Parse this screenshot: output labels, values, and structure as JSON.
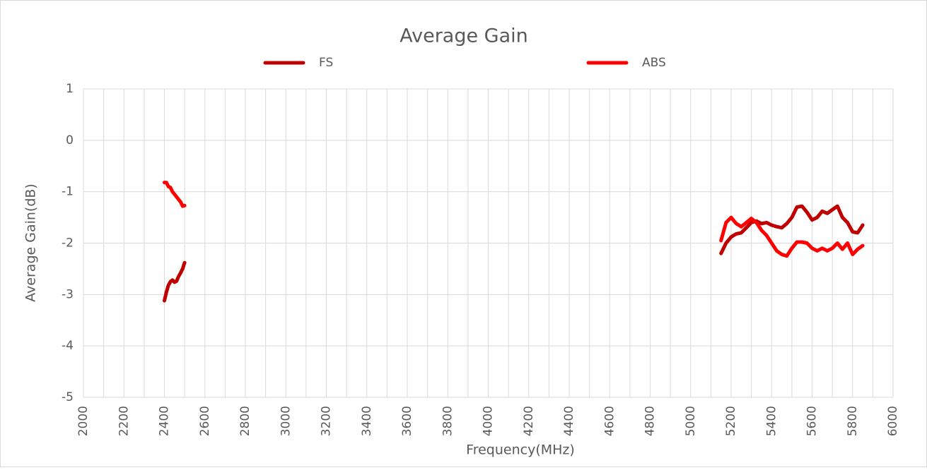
{
  "chart_data": {
    "type": "line",
    "title": "Average Gain",
    "x_label": "Frequency(MHz)",
    "y_label": "Average Gain(dB)",
    "legend": "top",
    "grid": true,
    "xlim": [
      2000,
      6000
    ],
    "xticks": [
      2000,
      2200,
      2400,
      2600,
      2800,
      3000,
      3200,
      3400,
      3600,
      3800,
      4000,
      4200,
      4400,
      4600,
      4800,
      5000,
      5200,
      5400,
      5600,
      5800,
      6000
    ],
    "xminorticks": [
      2100,
      2300,
      2500,
      2700,
      2900,
      3100,
      3300,
      3500,
      3700,
      3900,
      4100,
      4300,
      4500,
      4700,
      4900,
      5100,
      5300,
      5500,
      5700,
      5900
    ],
    "ylim": [
      -5,
      1
    ],
    "yticks": [
      -5,
      -4,
      -3,
      -2,
      -1,
      0,
      1
    ],
    "x": [
      2400,
      2410,
      2420,
      2430,
      2440,
      2450,
      2460,
      2470,
      2480,
      2490,
      2500,
      3800,
      5150,
      5175,
      5200,
      5225,
      5250,
      5275,
      5300,
      5325,
      5350,
      5375,
      5400,
      5425,
      5450,
      5475,
      5500,
      5525,
      5550,
      5575,
      5600,
      5625,
      5650,
      5675,
      5700,
      5725,
      5750,
      5775,
      5800,
      5825,
      5850
    ],
    "series": [
      {
        "name": "FS",
        "color": "#c00000",
        "values": [
          -3.12,
          -2.95,
          -2.82,
          -2.75,
          -2.72,
          -2.76,
          -2.74,
          -2.65,
          -2.58,
          -2.5,
          -2.38,
          null,
          -2.2,
          -2.0,
          -1.88,
          -1.82,
          -1.8,
          -1.7,
          -1.6,
          -1.57,
          -1.62,
          -1.6,
          -1.65,
          -1.68,
          -1.7,
          -1.62,
          -1.5,
          -1.3,
          -1.28,
          -1.4,
          -1.55,
          -1.5,
          -1.38,
          -1.42,
          -1.35,
          -1.28,
          -1.5,
          -1.6,
          -1.78,
          -1.8,
          -1.65
        ]
      },
      {
        "name": "ABS",
        "color": "#ff0000",
        "values": [
          -0.82,
          -0.82,
          -0.9,
          -0.92,
          -1.0,
          -1.05,
          -1.1,
          -1.15,
          -1.2,
          -1.28,
          -1.27,
          null,
          -1.95,
          -1.6,
          -1.5,
          -1.62,
          -1.68,
          -1.6,
          -1.52,
          -1.6,
          -1.75,
          -1.85,
          -2.0,
          -2.15,
          -2.22,
          -2.25,
          -2.1,
          -1.98,
          -1.98,
          -2.0,
          -2.1,
          -2.15,
          -2.1,
          -2.15,
          -2.1,
          -2.0,
          -2.12,
          -2.0,
          -2.22,
          -2.12,
          -2.05
        ]
      }
    ]
  }
}
